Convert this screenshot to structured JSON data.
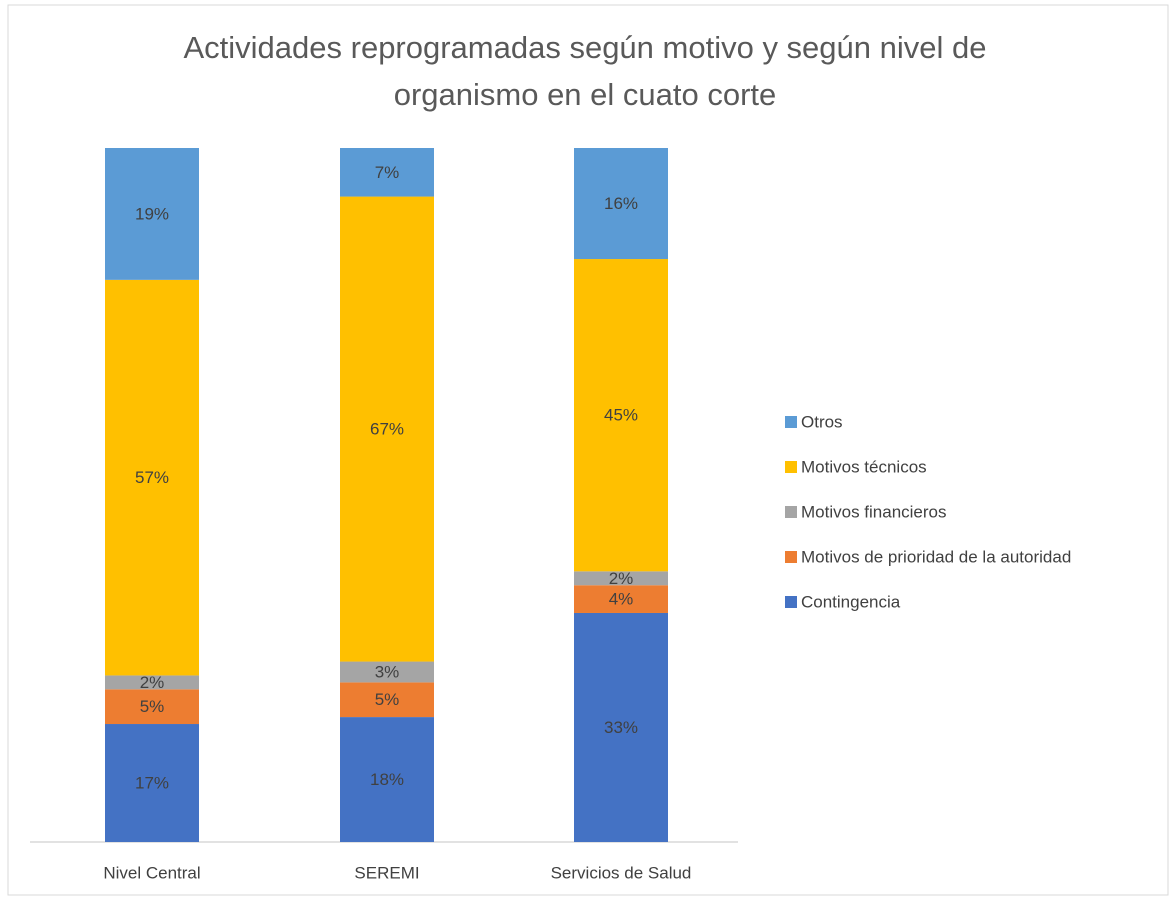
{
  "chart_data": {
    "type": "stacked_bar",
    "title": "Actividades reprogramadas según motivo y según nivel de organismo en el cuato corte",
    "categories": [
      "Nivel Central",
      "SEREMI",
      "Servicios de Salud"
    ],
    "series": [
      {
        "name": "Contingencia",
        "color": "#4472c4",
        "values": [
          17,
          18,
          33
        ],
        "value_labels": [
          "17%",
          "18%",
          "33%"
        ]
      },
      {
        "name": "Motivos de prioridad de la autoridad",
        "color": "#ed7d31",
        "values": [
          5,
          5,
          4
        ],
        "value_labels": [
          "5%",
          "5%",
          "4%"
        ]
      },
      {
        "name": "Motivos financieros",
        "color": "#a5a5a5",
        "values": [
          2,
          3,
          2
        ],
        "value_labels": [
          "2%",
          "3%",
          "2%"
        ]
      },
      {
        "name": "Motivos técnicos",
        "color": "#ffc000",
        "values": [
          57,
          67,
          45
        ],
        "value_labels": [
          "57%",
          "67%",
          "45%"
        ]
      },
      {
        "name": "Otros",
        "color": "#5b9bd5",
        "values": [
          19,
          7,
          16
        ],
        "value_labels": [
          "19%",
          "7%",
          "16%"
        ]
      }
    ],
    "legend": "right"
  }
}
